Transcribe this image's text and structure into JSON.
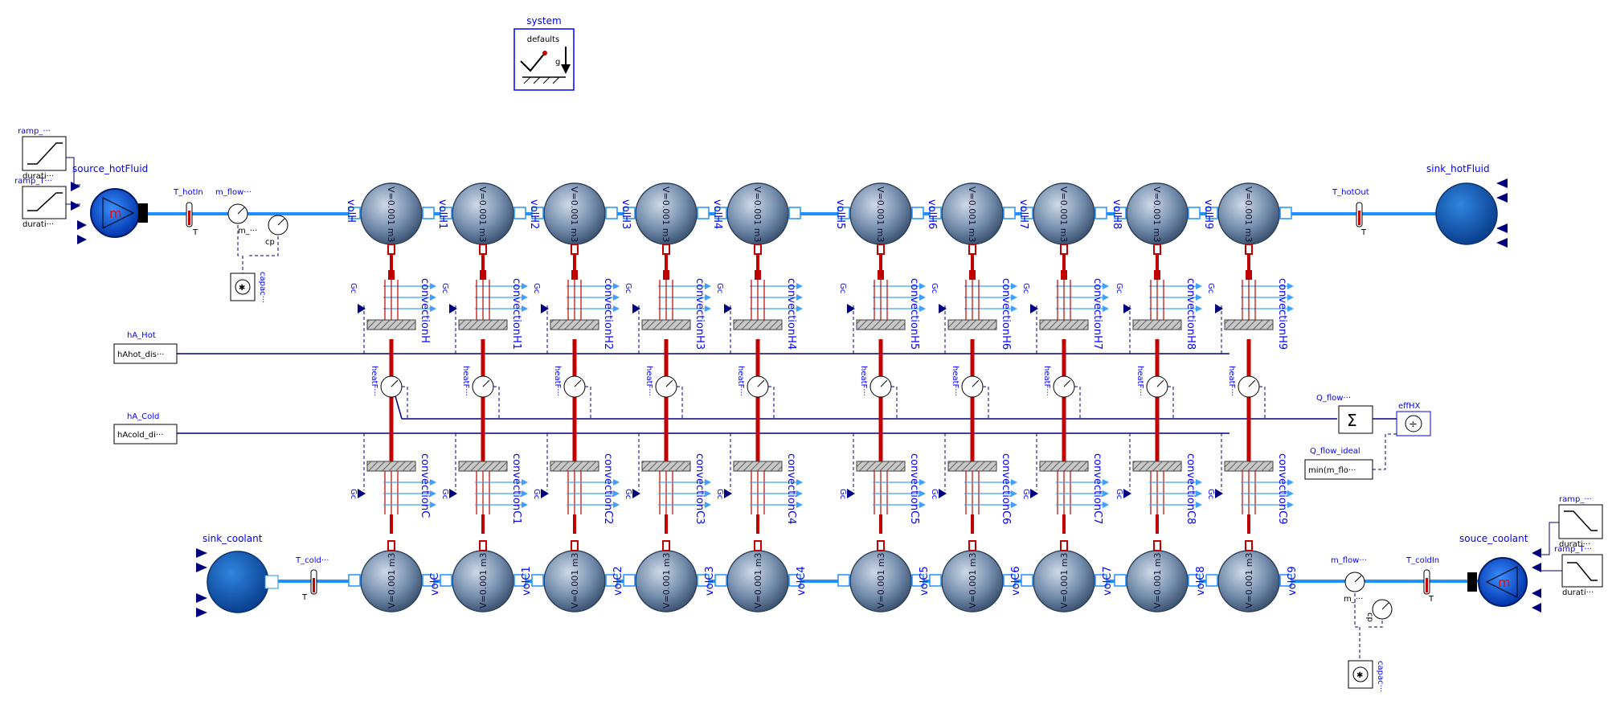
{
  "colors": {
    "fluid_line": "#1e90ff",
    "heat_line": "#c00000",
    "signal_line": "#00007f",
    "label": "#0000ff",
    "volume_fill": "#6f88a8",
    "boundary_fill": "#1565c0"
  },
  "system": {
    "label": "system",
    "text": "defaults",
    "g": "g"
  },
  "hot_side": {
    "ramp1": {
      "label": "ramp_···",
      "param": "durati···"
    },
    "ramp2": {
      "label": "ramp_T···",
      "param": "durati···"
    },
    "source": {
      "label": "source_hotFluid",
      "symbol": "m"
    },
    "t_in": {
      "label": "T_hotIn",
      "port": "T"
    },
    "m_flow": {
      "label": "m_flow···",
      "port": "m_···"
    },
    "cp_sensor": {
      "label": "cp"
    },
    "capacity": {
      "label": "capac···"
    },
    "t_out": {
      "label": "T_hotOut",
      "port": "T"
    },
    "sink": {
      "label": "sink_hotFluid"
    },
    "volumes": [
      "volH",
      "volH1",
      "volH2",
      "volH3",
      "volH4",
      "volH5",
      "volH6",
      "volH7",
      "volH8",
      "volH9"
    ],
    "volume_param": "V=0.001 m3",
    "convections": [
      "convectionH",
      "convectionH1",
      "convectionH2",
      "convectionH3",
      "convectionH4",
      "convectionH5",
      "convectionH6",
      "convectionH7",
      "convectionH8",
      "convectionH9"
    ]
  },
  "cold_side": {
    "sink": {
      "label": "sink_coolant"
    },
    "t_out": {
      "label": "T_cold···",
      "port": "T"
    },
    "volumes": [
      "volC",
      "volC1",
      "volC2",
      "volC3",
      "volC4",
      "volC5",
      "volC6",
      "volC7",
      "volC8",
      "volC9"
    ],
    "volume_param": "V=0.001 m3",
    "convections": [
      "convectionC",
      "convectionC1",
      "convectionC2",
      "convectionC3",
      "convectionC4",
      "convectionC5",
      "convectionC6",
      "convectionC7",
      "convectionC8",
      "convectionC9"
    ],
    "m_flow": {
      "label": "m_flow···",
      "port": "m_···"
    },
    "cp_sensor": {
      "label": "cp"
    },
    "capacity": {
      "label": "capac···"
    },
    "t_in": {
      "label": "T_coldIn",
      "port": "T"
    },
    "source": {
      "label": "souce_coolant",
      "symbol": "m"
    },
    "ramp1": {
      "label": "ramp_···",
      "param": "durati···"
    },
    "ramp2": {
      "label": "ramp_T···",
      "param": "durati···"
    }
  },
  "conductance_label": "Gc",
  "heatflow_label": "heatF···",
  "blocks": {
    "hA_hot": {
      "label": "hA_Hot",
      "value": "hAhot_dis···"
    },
    "hA_cold": {
      "label": "hA_Cold",
      "value": "hAcold_di···"
    },
    "q_flow": {
      "label": "Q_flow···",
      "symbol": "Σ"
    },
    "eff": {
      "label": "effHX",
      "symbol": "÷"
    },
    "q_ideal": {
      "label": "Q_flow_ideal",
      "value": "min(m_flo···"
    }
  }
}
